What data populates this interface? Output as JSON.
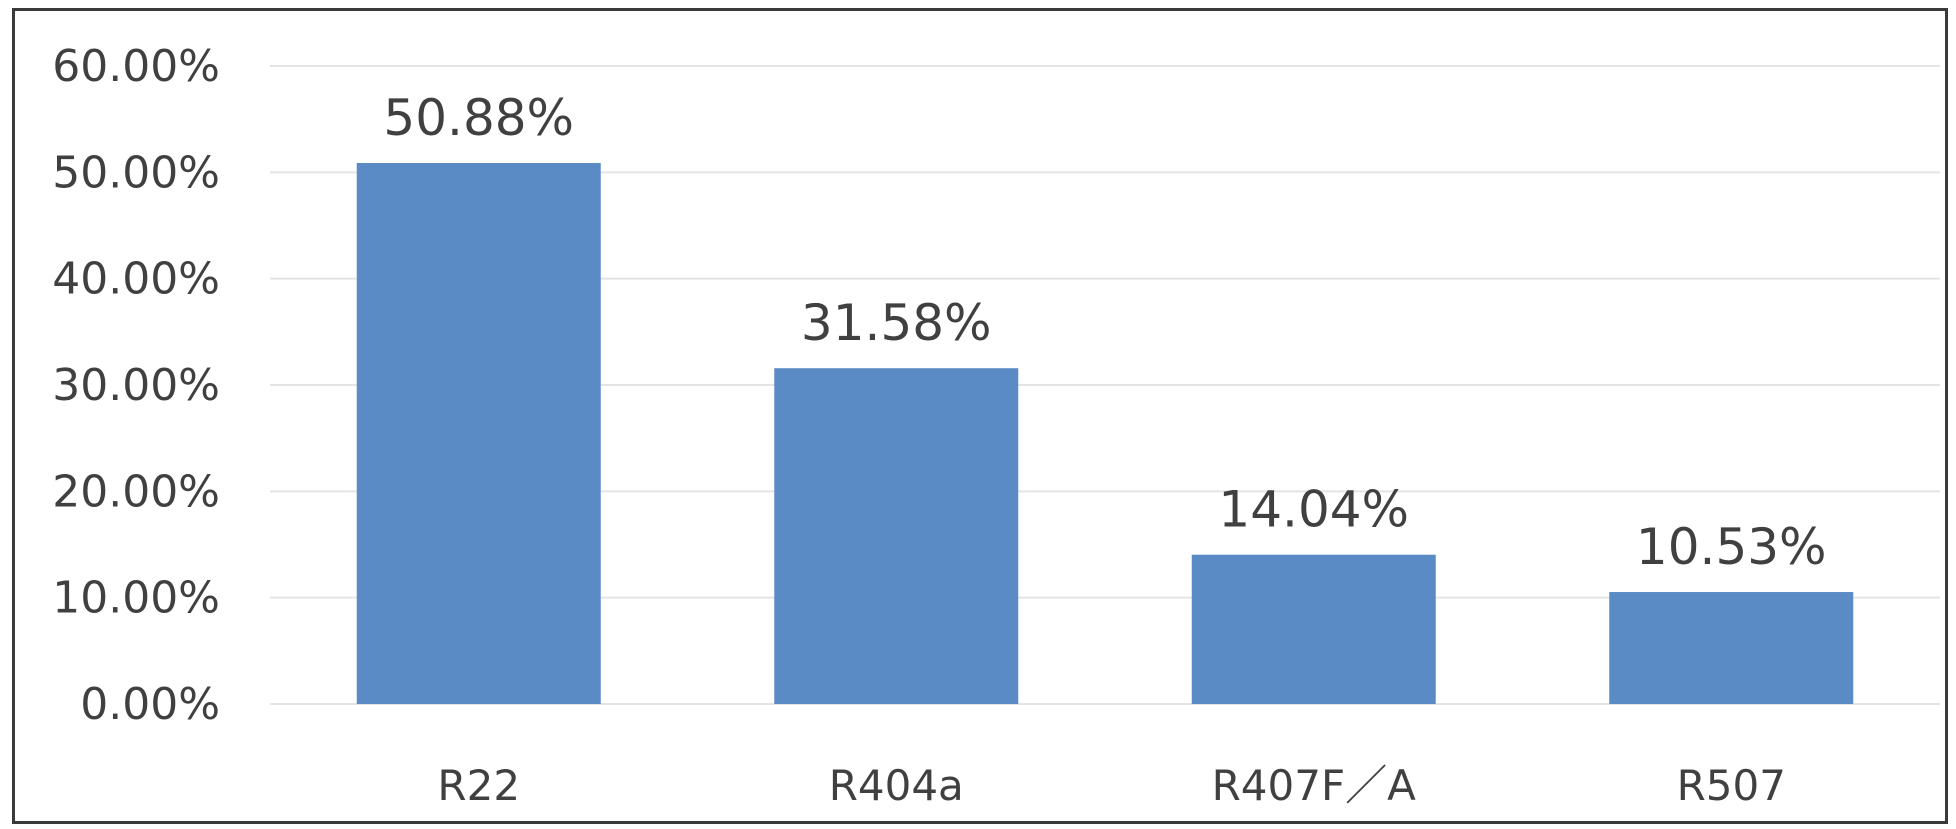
{
  "chart_data": {
    "type": "bar",
    "categories": [
      "R22",
      "R404a",
      "R407F／A",
      "R507"
    ],
    "values": [
      50.88,
      31.58,
      14.04,
      10.53
    ],
    "data_labels": [
      "50.88%",
      "31.58%",
      "14.04%",
      "10.53%"
    ],
    "yticks": [
      0,
      10,
      20,
      30,
      40,
      50,
      60
    ],
    "ytick_labels": [
      "0.00%",
      "10.00%",
      "20.00%",
      "30.00%",
      "40.00%",
      "50.00%",
      "60.00%"
    ],
    "ylim": [
      0,
      60
    ],
    "grid": true,
    "legend": "none",
    "bar_color": "#5b8bc5"
  }
}
